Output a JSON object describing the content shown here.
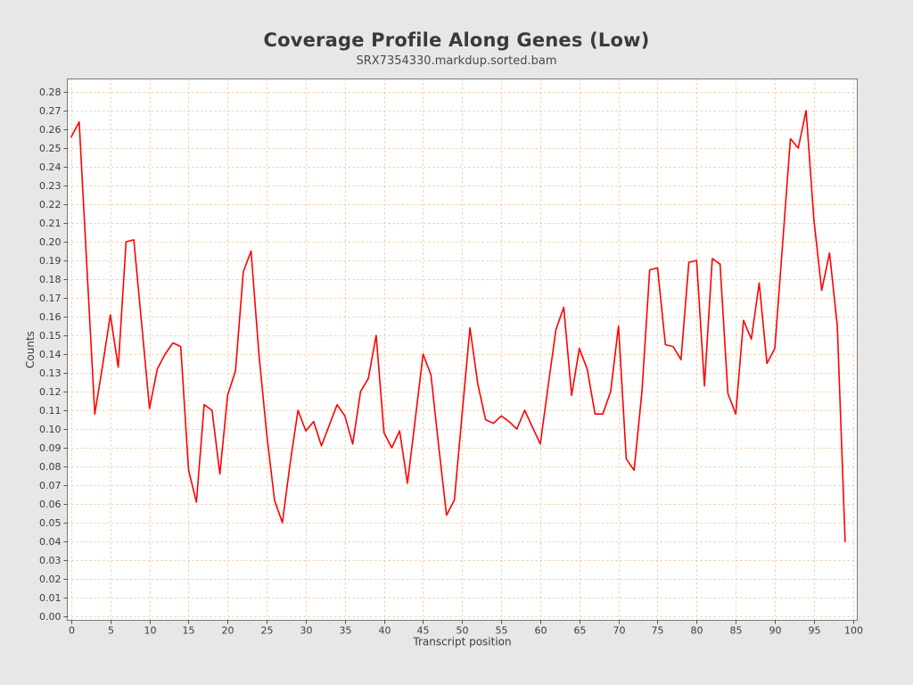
{
  "page": {
    "background": "#e7e7e7"
  },
  "chart_data": {
    "type": "line",
    "title": "Coverage Profile Along Genes (Low)",
    "subtitle": "SRX7354330.markdup.sorted.bam",
    "xlabel": "Transcript position",
    "ylabel": "Counts",
    "legend": "none",
    "grid": {
      "on": true,
      "color": "#f2c59c",
      "style": "dashed"
    },
    "plot_bg": "#ffffff",
    "series_color": "#ff0000",
    "xlim": [
      0,
      100
    ],
    "ylim": [
      0,
      0.28
    ],
    "x_start": 0,
    "x_step": 1,
    "x_ticks": [
      0,
      5,
      10,
      15,
      20,
      25,
      30,
      35,
      40,
      45,
      50,
      55,
      60,
      65,
      70,
      75,
      80,
      85,
      90,
      95,
      100
    ],
    "y_ticks": [
      "0.00",
      "0.01",
      "0.02",
      "0.03",
      "0.04",
      "0.05",
      "0.06",
      "0.07",
      "0.08",
      "0.09",
      "0.10",
      "0.11",
      "0.12",
      "0.13",
      "0.14",
      "0.15",
      "0.16",
      "0.17",
      "0.18",
      "0.19",
      "0.20",
      "0.21",
      "0.22",
      "0.23",
      "0.24",
      "0.25",
      "0.26",
      "0.27",
      "0.28"
    ],
    "values": [
      0.256,
      0.264,
      0.186,
      0.108,
      0.134,
      0.161,
      0.133,
      0.2,
      0.201,
      0.156,
      0.111,
      0.132,
      0.14,
      0.146,
      0.144,
      0.078,
      0.061,
      0.113,
      0.11,
      0.076,
      0.118,
      0.131,
      0.184,
      0.195,
      0.14,
      0.097,
      0.062,
      0.05,
      0.082,
      0.11,
      0.099,
      0.104,
      0.091,
      0.102,
      0.113,
      0.107,
      0.092,
      0.12,
      0.127,
      0.15,
      0.098,
      0.09,
      0.099,
      0.071,
      0.105,
      0.14,
      0.129,
      0.091,
      0.054,
      0.062,
      0.108,
      0.154,
      0.124,
      0.105,
      0.103,
      0.107,
      0.104,
      0.1,
      0.11,
      0.101,
      0.092,
      0.123,
      0.153,
      0.165,
      0.118,
      0.143,
      0.132,
      0.108,
      0.108,
      0.12,
      0.155,
      0.084,
      0.078,
      0.12,
      0.185,
      0.186,
      0.145,
      0.144,
      0.137,
      0.189,
      0.19,
      0.123,
      0.191,
      0.188,
      0.119,
      0.108,
      0.158,
      0.148,
      0.178,
      0.135,
      0.143,
      0.199,
      0.255,
      0.25,
      0.27,
      0.212,
      0.174,
      0.194,
      0.155,
      0.04
    ]
  }
}
